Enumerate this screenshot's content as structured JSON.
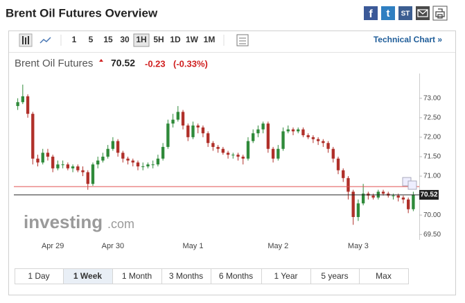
{
  "header": {
    "title": "Brent Oil Futures Overview",
    "share": [
      "f",
      "t",
      "ST"
    ]
  },
  "toolbar": {
    "intervals": [
      "1",
      "5",
      "15",
      "30",
      "1H",
      "5H",
      "1D",
      "1W",
      "1M"
    ],
    "selected": "1H",
    "link": "Technical Chart »"
  },
  "quote": {
    "name": "Brent Oil Futures",
    "price": "70.52",
    "change": "-0.23",
    "change_pct": "(-0.33%)"
  },
  "watermark": [
    "investing",
    ".com"
  ],
  "ranges": [
    "1 Day",
    "1 Week",
    "1 Month",
    "3 Months",
    "6 Months",
    "1 Year",
    "5 years",
    "Max"
  ],
  "selected_range": "1 Week",
  "chart_data": {
    "type": "candlestick",
    "categories": [
      null,
      null,
      null,
      null,
      null,
      null,
      null,
      "Apr 29",
      null,
      null,
      null,
      null,
      null,
      null,
      null,
      null,
      null,
      null,
      null,
      "Apr 30",
      null,
      null,
      null,
      null,
      null,
      null,
      null,
      null,
      null,
      null,
      null,
      null,
      null,
      null,
      null,
      "May 1",
      null,
      null,
      null,
      null,
      null,
      null,
      null,
      null,
      null,
      null,
      null,
      null,
      null,
      null,
      null,
      null,
      "May 2",
      null,
      null,
      null,
      null,
      null,
      null,
      null,
      null,
      null,
      null,
      null,
      null,
      null,
      null,
      null,
      "May 3",
      null,
      null,
      null,
      null,
      null,
      null,
      null,
      null,
      null,
      null,
      null
    ],
    "open": [
      72.8,
      72.9,
      73.05,
      72.6,
      71.45,
      71.35,
      71.6,
      71.5,
      71.2,
      71.3,
      71.3,
      71.2,
      71.25,
      71.15,
      71.1,
      70.8,
      71.3,
      71.4,
      71.5,
      71.7,
      71.9,
      71.6,
      71.45,
      71.4,
      71.35,
      71.25,
      71.25,
      71.3,
      71.3,
      71.45,
      71.75,
      72.35,
      72.45,
      72.65,
      72.3,
      72.0,
      72.3,
      72.25,
      72.1,
      71.85,
      71.75,
      71.7,
      71.6,
      71.55,
      71.55,
      71.5,
      71.45,
      71.9,
      72.1,
      72.2,
      72.35,
      71.7,
      71.45,
      71.7,
      72.15,
      72.2,
      72.15,
      72.2,
      72.05,
      72.0,
      71.95,
      71.9,
      71.85,
      71.7,
      71.45,
      71.15,
      70.95,
      70.6,
      69.95,
      70.3,
      70.55,
      70.5,
      70.45,
      70.6,
      70.55,
      70.5,
      70.5,
      70.45,
      70.4,
      70.15
    ],
    "high": [
      73.0,
      73.35,
      73.1,
      72.65,
      71.55,
      71.7,
      71.7,
      71.55,
      71.4,
      71.4,
      71.35,
      71.3,
      71.3,
      71.25,
      71.15,
      71.35,
      71.5,
      71.6,
      71.8,
      72.0,
      71.95,
      71.65,
      71.5,
      71.45,
      71.4,
      71.35,
      71.35,
      71.4,
      71.55,
      71.85,
      72.45,
      72.6,
      72.8,
      72.7,
      72.35,
      72.4,
      72.35,
      72.3,
      72.15,
      71.9,
      71.8,
      71.75,
      71.65,
      71.6,
      71.6,
      71.55,
      72.0,
      72.2,
      72.3,
      72.4,
      72.4,
      71.75,
      71.8,
      72.25,
      72.3,
      72.25,
      72.25,
      72.25,
      72.1,
      72.05,
      72.0,
      71.95,
      71.9,
      71.75,
      71.5,
      71.2,
      71.0,
      70.65,
      70.4,
      70.8,
      70.6,
      70.55,
      70.65,
      70.65,
      70.6,
      70.55,
      70.55,
      70.5,
      70.45,
      70.6
    ],
    "low": [
      72.7,
      72.85,
      72.5,
      71.3,
      71.25,
      71.3,
      71.4,
      71.1,
      71.15,
      71.2,
      71.15,
      71.1,
      71.1,
      71.0,
      70.65,
      70.75,
      71.2,
      71.35,
      71.45,
      71.65,
      71.5,
      71.35,
      71.3,
      71.25,
      71.15,
      71.15,
      71.2,
      71.2,
      71.25,
      71.4,
      71.7,
      72.25,
      72.4,
      72.2,
      71.9,
      71.95,
      72.1,
      72.0,
      71.75,
      71.65,
      71.6,
      71.55,
      71.45,
      71.45,
      71.4,
      71.3,
      71.4,
      71.85,
      72.0,
      72.1,
      71.6,
      71.35,
      71.4,
      71.65,
      72.1,
      72.05,
      72.1,
      72.0,
      71.95,
      71.85,
      71.8,
      71.75,
      71.6,
      71.35,
      71.05,
      70.85,
      70.4,
      69.75,
      69.85,
      70.25,
      70.4,
      70.4,
      70.4,
      70.5,
      70.45,
      70.4,
      70.35,
      70.3,
      70.05,
      70.1
    ],
    "close": [
      72.9,
      73.05,
      72.6,
      71.45,
      71.35,
      71.6,
      71.5,
      71.2,
      71.3,
      71.3,
      71.2,
      71.25,
      71.15,
      71.1,
      70.8,
      71.3,
      71.4,
      71.5,
      71.7,
      71.9,
      71.6,
      71.45,
      71.4,
      71.35,
      71.25,
      71.25,
      71.3,
      71.3,
      71.45,
      71.75,
      72.35,
      72.45,
      72.65,
      72.3,
      72.0,
      72.3,
      72.25,
      72.1,
      71.85,
      71.75,
      71.7,
      71.6,
      71.55,
      71.55,
      71.5,
      71.45,
      71.9,
      72.1,
      72.2,
      72.35,
      71.7,
      71.45,
      71.7,
      72.15,
      72.2,
      72.15,
      72.2,
      72.05,
      72.0,
      71.95,
      71.9,
      71.85,
      71.7,
      71.45,
      71.15,
      70.95,
      70.6,
      69.95,
      70.3,
      70.55,
      70.5,
      70.45,
      70.6,
      70.55,
      70.5,
      70.5,
      70.45,
      70.4,
      70.15,
      70.52
    ],
    "up_color": "#2f8a3a",
    "down_color": "#b0302a",
    "lines": [
      {
        "value": 70.73,
        "color": "#e05050"
      },
      {
        "value": 70.52,
        "color": "#222222"
      }
    ],
    "ylim": [
      69.38,
      73.6
    ],
    "yticks": [
      {
        "value": 69.5,
        "label": "69.50"
      },
      {
        "value": 70,
        "label": "70.00"
      },
      {
        "value": 71,
        "label": "71.00"
      },
      {
        "value": 71.5,
        "label": "71.50"
      },
      {
        "value": 72,
        "label": "72.00"
      },
      {
        "value": 72.5,
        "label": "72.50"
      },
      {
        "value": 73,
        "label": "73.00"
      }
    ],
    "grid": false
  }
}
